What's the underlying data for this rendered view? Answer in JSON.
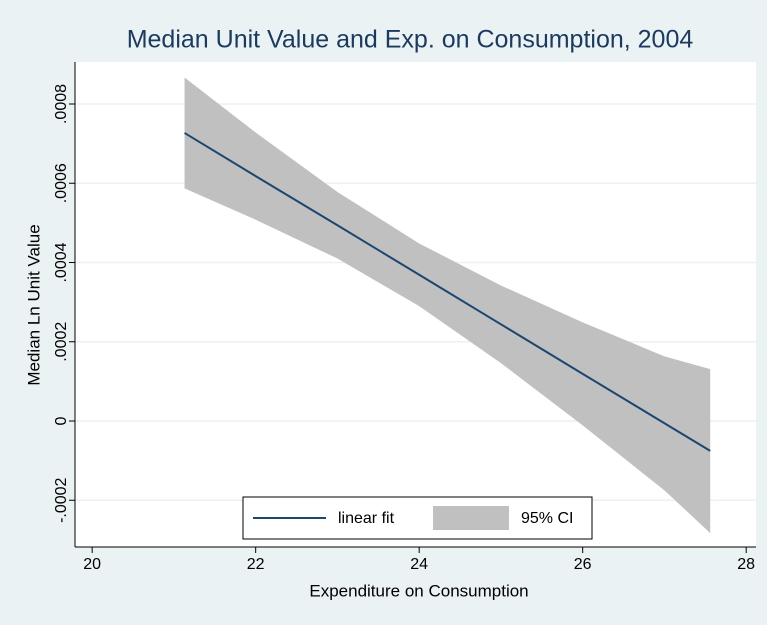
{
  "chart_data": {
    "type": "line",
    "title": "Median Unit Value and Exp. on Consumption, 2004",
    "x_label": "Expenditure on Consumption",
    "y_label": "Median Ln Unit Value",
    "x": [
      21.13,
      22,
      23,
      24,
      25,
      26,
      27,
      27.56
    ],
    "series": [
      {
        "name": "linear fit",
        "color": "#1a476f",
        "values": [
          0.000727,
          0.000618,
          0.000494,
          0.000369,
          0.000244,
          0.000119,
          -5.6e-06,
          -7.55e-05
        ]
      },
      {
        "name": "95% CI",
        "color": "#c0c0c0",
        "upper": [
          0.000867,
          0.000728,
          0.000578,
          0.000448,
          0.000342,
          0.000249,
          0.000163,
          0.000131
        ],
        "lower": [
          0.000587,
          0.000508,
          0.00041,
          0.00029,
          0.000146,
          -1.1e-05,
          -0.000175,
          -0.000283
        ]
      }
    ],
    "xlim": [
      19.79,
      28.12
    ],
    "ylim": [
      -0.000318,
      0.000906
    ],
    "xticks": [
      20,
      22,
      24,
      26,
      28
    ],
    "yticks": [
      {
        "value": -0.0002,
        "label": "-.0002"
      },
      0,
      {
        "value": 0.0002,
        "label": ".0002"
      },
      {
        "value": 0.0004,
        "label": ".0004"
      },
      {
        "value": 0.0006,
        "label": ".0006"
      },
      {
        "value": 0.0008,
        "label": ".0008"
      }
    ],
    "grid": true
  }
}
